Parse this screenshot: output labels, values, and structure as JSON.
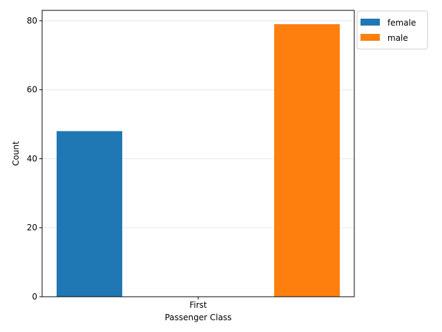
{
  "chart_data": {
    "type": "bar",
    "title": "",
    "xlabel": "Passenger Class",
    "ylabel": "Count",
    "categories": [
      "First"
    ],
    "series": [
      {
        "name": "female",
        "values": [
          48
        ],
        "color": "#1f77b4"
      },
      {
        "name": "male",
        "values": [
          79
        ],
        "color": "#ff7f0e"
      }
    ],
    "ylim": [
      0,
      83
    ],
    "yticks": [
      0,
      20,
      40,
      60,
      80
    ],
    "grid": "horizontal",
    "legend": "outside-top-right"
  }
}
